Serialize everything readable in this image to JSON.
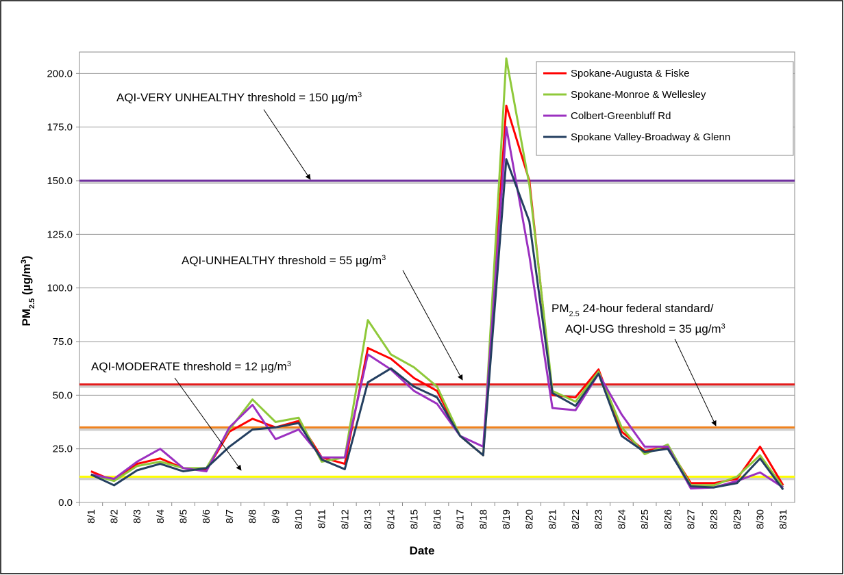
{
  "chart_data": {
    "type": "line",
    "x_label": "Date",
    "y_label": [
      {
        "text": "PM"
      },
      {
        "text": "2.5",
        "baseline": "sub"
      },
      {
        "text": " (µg/m"
      },
      {
        "text": "3",
        "baseline": "super"
      },
      {
        "text": ")"
      }
    ],
    "categories": [
      "8/1",
      "8/2",
      "8/3",
      "8/4",
      "8/5",
      "8/6",
      "8/7",
      "8/8",
      "8/9",
      "8/10",
      "8/11",
      "8/12",
      "8/13",
      "8/14",
      "8/15",
      "8/16",
      "8/17",
      "8/18",
      "8/19",
      "8/20",
      "8/21",
      "8/22",
      "8/23",
      "8/24",
      "8/25",
      "8/26",
      "8/27",
      "8/28",
      "8/29",
      "8/30",
      "8/31"
    ],
    "series": [
      {
        "name": "Spokane-Augusta & Fiske",
        "color": "#ff0000",
        "values": [
          14.5,
          10,
          18,
          20.5,
          16,
          15,
          33,
          39,
          35,
          38,
          21,
          18,
          72,
          67,
          58,
          52,
          31,
          22,
          185,
          150,
          50,
          49,
          62,
          33,
          24,
          26,
          9,
          9,
          11,
          26,
          8
        ]
      },
      {
        "name": "Spokane-Monroe & Wellesley",
        "color": "#8fc93a",
        "values": [
          13,
          10,
          17,
          19,
          16,
          16,
          34,
          48,
          37.5,
          39.5,
          19,
          21,
          85,
          69,
          63,
          54,
          31,
          22,
          207,
          148,
          52,
          47,
          61,
          35,
          22.5,
          27,
          8,
          8,
          12,
          22,
          7
        ]
      },
      {
        "name": "Colbert-Greenbluff Rd",
        "color": "#9b30c0",
        "values": [
          13,
          11,
          19,
          25,
          16,
          14.5,
          35,
          45.5,
          29.5,
          34,
          21,
          21,
          69,
          62,
          52,
          46,
          31,
          26,
          175,
          115,
          44,
          43,
          60,
          41,
          26,
          26,
          6.5,
          7,
          10,
          14,
          7
        ]
      },
      {
        "name": "Spokane Valley-Broadway & Glenn",
        "color": "#243f60",
        "values": [
          13,
          8,
          15,
          18,
          14.5,
          16,
          26,
          34,
          35,
          37,
          20,
          15.5,
          56,
          62.5,
          54,
          49,
          31,
          22,
          160,
          131,
          51,
          45,
          60,
          31,
          23.5,
          25,
          7.5,
          7,
          9,
          20.5,
          6
        ]
      }
    ],
    "thresholds": [
      {
        "value": 150,
        "color": "#7030a0",
        "label": [
          [
            {
              "text": "AQI-VERY UNHEALTHY threshold = 150 µg/m"
            },
            {
              "text": "3",
              "baseline": "super"
            }
          ]
        ]
      },
      {
        "value": 55,
        "color": "#e41b1b",
        "label": [
          [
            {
              "text": "AQI-UNHEALTHY threshold = 55 µg/m"
            },
            {
              "text": "3",
              "baseline": "super"
            }
          ]
        ]
      },
      {
        "value": 35,
        "color": "#f0821e",
        "label": [
          [
            {
              "text": "PM"
            },
            {
              "text": "2.5",
              "baseline": "sub"
            },
            {
              "text": " 24-hour federal standard/"
            }
          ],
          [
            {
              "text": "AQI-USG threshold = 35 µg/m"
            },
            {
              "text": "3",
              "baseline": "super"
            }
          ]
        ]
      },
      {
        "value": 12,
        "color": "#ffff00",
        "label": [
          [
            {
              "text": "AQI-MODERATE threshold = 12 µg/m"
            },
            {
              "text": "3",
              "baseline": "super"
            }
          ]
        ]
      }
    ],
    "ylim": [
      0,
      210
    ],
    "yticks": [
      {
        "value": 0,
        "label": "0.0"
      },
      {
        "value": 25,
        "label": "25.0"
      },
      {
        "value": 50,
        "label": "50.0"
      },
      {
        "value": 75,
        "label": "75.0"
      },
      {
        "value": 100,
        "label": "100.0"
      },
      {
        "value": 125,
        "label": "125.0"
      },
      {
        "value": 150,
        "label": "150.0"
      },
      {
        "value": 175,
        "label": "175.0"
      },
      {
        "value": 200,
        "label": "200.0"
      }
    ],
    "grid": true,
    "legend": "upper right"
  }
}
